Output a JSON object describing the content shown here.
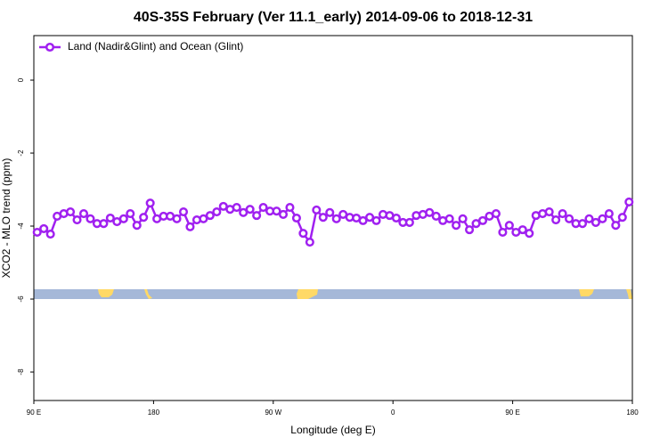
{
  "chart_data": {
    "type": "line",
    "title": "40S-35S February (Ver 11.1_early)   2014-09-06 to 2018-12-31",
    "x_label": "Longitude (deg E)",
    "y_label": "XCO2 - MLO trend (ppm)",
    "xlim": [
      90,
      540
    ],
    "ylim": [
      -8.78,
      1.22
    ],
    "xticks": [
      {
        "value": 90,
        "label": "90 E"
      },
      {
        "value": 180,
        "label": "180"
      },
      {
        "value": 270,
        "label": "90 W"
      },
      {
        "value": 360,
        "label": "0"
      },
      {
        "value": 450,
        "label": "90 E"
      },
      {
        "value": 540,
        "label": "180"
      }
    ],
    "yticks": [
      -8,
      -6,
      -4,
      -2,
      0
    ],
    "grid": false,
    "legend": "top-left",
    "series": [
      {
        "name": "Land (Nadir&Glint) and Ocean (Glint)",
        "color": "#a020f0",
        "x": [
          92.5,
          97.5,
          102.5,
          107.5,
          112.5,
          117.5,
          122.5,
          127.5,
          132.5,
          137.5,
          142.5,
          147.5,
          152.5,
          157.5,
          162.5,
          167.5,
          172.5,
          177.5,
          182.5,
          187.5,
          192.5,
          197.5,
          202.5,
          207.5,
          212.5,
          217.5,
          222.5,
          227.5,
          232.5,
          237.5,
          242.5,
          247.5,
          252.5,
          257.5,
          262.5,
          267.5,
          272.5,
          277.5,
          282.5,
          287.5,
          292.5,
          297.5,
          302.5,
          307.5,
          312.5,
          317.5,
          322.5,
          327.5,
          332.5,
          337.5,
          342.5,
          347.5,
          352.5,
          357.5,
          362.5,
          367.5,
          372.5,
          377.5,
          382.5,
          387.5,
          392.5,
          397.5,
          402.5,
          407.5,
          412.5,
          417.5,
          422.5,
          427.5,
          432.5,
          437.5,
          442.5,
          447.5,
          452.5,
          457.5,
          462.5,
          467.5,
          472.5,
          477.5,
          482.5,
          487.5,
          492.5,
          497.5,
          502.5,
          507.5,
          512.5,
          517.5,
          522.5,
          527.5,
          532.5,
          537.5
        ],
        "values": [
          -4.17,
          -4.07,
          -4.22,
          -3.73,
          -3.66,
          -3.61,
          -3.83,
          -3.66,
          -3.8,
          -3.93,
          -3.93,
          -3.78,
          -3.88,
          -3.8,
          -3.66,
          -3.98,
          -3.76,
          -3.37,
          -3.8,
          -3.73,
          -3.73,
          -3.8,
          -3.61,
          -4.02,
          -3.83,
          -3.8,
          -3.71,
          -3.61,
          -3.46,
          -3.54,
          -3.49,
          -3.63,
          -3.54,
          -3.71,
          -3.49,
          -3.59,
          -3.59,
          -3.68,
          -3.49,
          -3.78,
          -4.2,
          -4.44,
          -3.56,
          -3.76,
          -3.63,
          -3.8,
          -3.68,
          -3.76,
          -3.78,
          -3.85,
          -3.76,
          -3.85,
          -3.68,
          -3.71,
          -3.78,
          -3.9,
          -3.9,
          -3.71,
          -3.68,
          -3.63,
          -3.73,
          -3.85,
          -3.8,
          -3.98,
          -3.8,
          -4.1,
          -3.93,
          -3.85,
          -3.73,
          -3.66,
          -4.17,
          -3.98,
          -4.17,
          -4.1,
          -4.2,
          -3.71,
          -3.66,
          -3.61,
          -3.83,
          -3.66,
          -3.8,
          -3.93,
          -3.93,
          -3.8,
          -3.9,
          -3.8,
          -3.66,
          -3.98,
          -3.76,
          -3.34
        ]
      }
    ]
  }
}
